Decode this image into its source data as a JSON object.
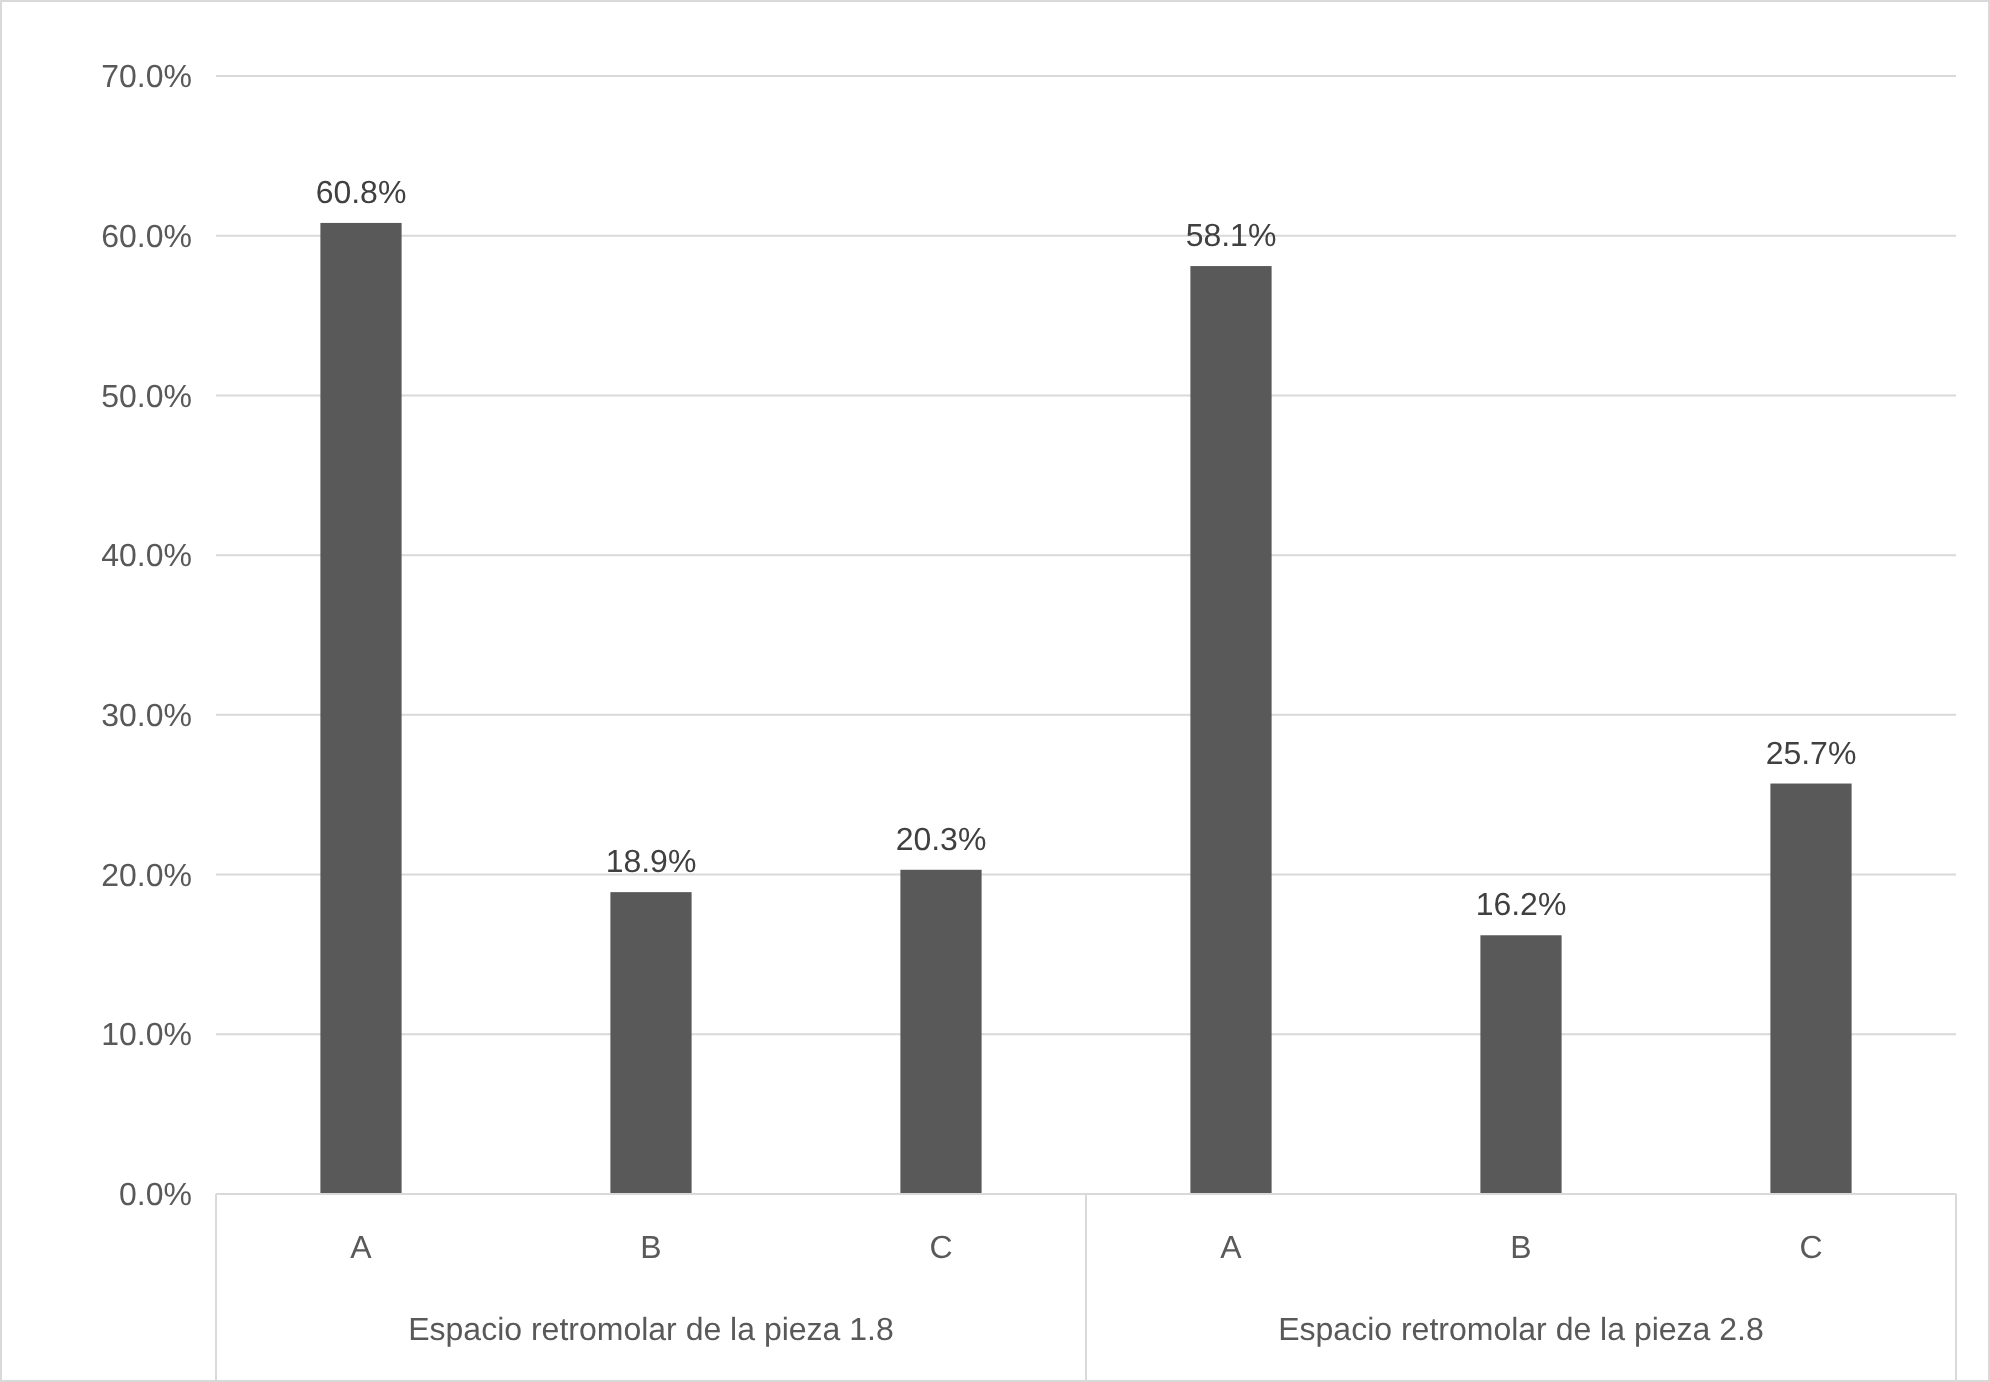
{
  "chart_data": {
    "type": "bar",
    "categories": [
      "A",
      "B",
      "C",
      "A",
      "B",
      "C"
    ],
    "values": [
      60.8,
      18.9,
      20.3,
      58.1,
      16.2,
      25.7
    ],
    "value_labels": [
      "60.8%",
      "18.9%",
      "20.3%",
      "58.1%",
      "16.2%",
      "25.7%"
    ],
    "color": "#595959",
    "ylim": [
      0,
      70
    ],
    "yticks": [
      {
        "value": 0,
        "label": "0.0%"
      },
      {
        "value": 10,
        "label": "10.0%"
      },
      {
        "value": 20,
        "label": "20.0%"
      },
      {
        "value": 30,
        "label": "30.0%"
      },
      {
        "value": 40,
        "label": "40.0%"
      },
      {
        "value": 50,
        "label": "50.0%"
      },
      {
        "value": 60,
        "label": "60.0%"
      },
      {
        "value": 70,
        "label": "70.0%"
      }
    ],
    "grid": "y",
    "annotations": [
      "Espacio retromolar de la pieza 1.8",
      "Espacio retromolar de la pieza 2.8"
    ]
  }
}
